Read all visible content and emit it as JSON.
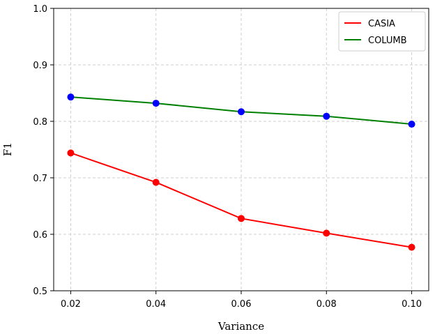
{
  "chart_data": {
    "type": "line",
    "xlabel": "Variance",
    "ylabel": "F1",
    "x": [
      0.02,
      0.04,
      0.06,
      0.08,
      0.1
    ],
    "x_tick_labels": [
      "0.02",
      "0.04",
      "0.06",
      "0.08",
      "0.10"
    ],
    "xlim": [
      0.016,
      0.104
    ],
    "ylim": [
      0.5,
      1.0
    ],
    "y_ticks": [
      0.5,
      0.6,
      0.7,
      0.8,
      0.9,
      1.0
    ],
    "y_tick_labels": [
      "0.5",
      "0.6",
      "0.7",
      "0.8",
      "0.9",
      "1.0"
    ],
    "grid": true,
    "legend_position": "top-right",
    "series": [
      {
        "name": "CASIA",
        "values": [
          0.744,
          0.692,
          0.628,
          0.602,
          0.577
        ],
        "line_color": "#ff0000",
        "marker_color": "#ff0000"
      },
      {
        "name": "COLUMB",
        "values": [
          0.843,
          0.832,
          0.817,
          0.809,
          0.795
        ],
        "line_color": "#008000",
        "marker_color": "#0000ff"
      }
    ]
  }
}
